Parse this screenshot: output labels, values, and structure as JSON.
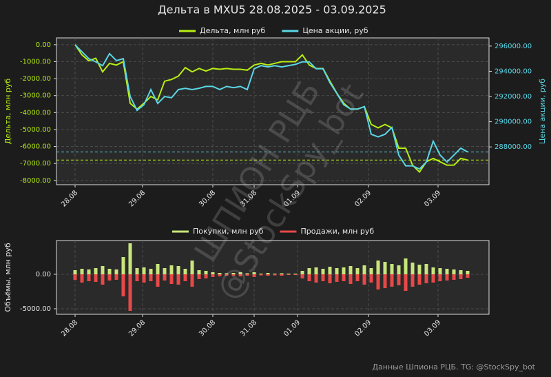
{
  "footer": "Данные Шпиона РЦБ. TG: @StockSpy_bot",
  "watermark": [
    "ШПИОН РЦБ",
    "@StockSpy_bot"
  ],
  "chart_data": [
    {
      "type": "line",
      "title": "Дельта в MXU5 28.08.2025 - 03.09.2025",
      "ylabel": "Дельта, млн руб",
      "y2label": "Цена акции, руб",
      "xlim": [
        -2.7,
        60.1
      ],
      "xticks": [
        {
          "value": 0,
          "label": "28.08"
        },
        {
          "value": 9.8,
          "label": "29.08"
        },
        {
          "value": 20,
          "label": "30.08"
        },
        {
          "value": 26,
          "label": "31.08"
        },
        {
          "value": 32.3,
          "label": "01.09"
        },
        {
          "value": 42.6,
          "label": "02.09"
        },
        {
          "value": 52.7,
          "label": "03.09"
        }
      ],
      "ylim": [
        -8250,
        400
      ],
      "yticks": [
        {
          "value": 0,
          "label": "0.00"
        },
        {
          "value": -1000,
          "label": "-1000.00"
        },
        {
          "value": -2000,
          "label": "-2000.00"
        },
        {
          "value": -3000,
          "label": "-3000.00"
        },
        {
          "value": -4000,
          "label": "-4000.00"
        },
        {
          "value": -5000,
          "label": "-5000.00"
        },
        {
          "value": -6000,
          "label": "-6000.00"
        },
        {
          "value": -7000,
          "label": "-7000.00"
        },
        {
          "value": -8000,
          "label": "-8000.00"
        }
      ],
      "y2lim": [
        285000,
        296650
      ],
      "y2ticks": [
        {
          "value": 288000,
          "label": "288000.00"
        },
        {
          "value": 290000,
          "label": "290000.00"
        },
        {
          "value": 292000,
          "label": "292000.00"
        },
        {
          "value": 294000,
          "label": "294000.00"
        },
        {
          "value": 296000,
          "label": "296000.00"
        }
      ],
      "grid": true,
      "legend": "top",
      "last_value_lines": true,
      "series": [
        {
          "name": "Дельта, млн руб",
          "color": "#b8ee12",
          "values": [
            0,
            -600,
            -950,
            -800,
            -1600,
            -1100,
            -1200,
            -1000,
            -3450,
            -3800,
            -3450,
            -3050,
            -3250,
            -2150,
            -2050,
            -1850,
            -1350,
            -1600,
            -1400,
            -1550,
            -1400,
            -1450,
            -1400,
            -1450,
            -1450,
            -1500,
            -1200,
            -1100,
            -1200,
            -1100,
            -1000,
            -1000,
            -1000,
            -600,
            -1200,
            -1400,
            -1400,
            -2150,
            -2850,
            -3450,
            -3800,
            -3800,
            -3650,
            -4700,
            -4900,
            -4700,
            -4900,
            -6100,
            -6100,
            -7100,
            -7500,
            -6900,
            -6700,
            -6900,
            -7100,
            -7100,
            -6700,
            -6800
          ]
        },
        {
          "name": "Цена акции, руб",
          "color": "#5ad6e6",
          "axis": "y2",
          "values": [
            296100,
            295550,
            295000,
            294750,
            294450,
            295400,
            294850,
            295000,
            292000,
            290900,
            291350,
            292550,
            291450,
            292000,
            291900,
            292550,
            292650,
            292550,
            292650,
            292800,
            292800,
            292550,
            292800,
            292700,
            292800,
            292550,
            294200,
            294450,
            294350,
            294450,
            294350,
            294450,
            294550,
            294750,
            294750,
            294200,
            294200,
            293100,
            292250,
            291350,
            291000,
            291000,
            291200,
            289000,
            288800,
            289000,
            289550,
            287350,
            286500,
            286500,
            286250,
            286800,
            288450,
            287350,
            286800,
            287350,
            287900,
            287600
          ]
        }
      ]
    },
    {
      "type": "bar",
      "ylabel": "Объёмы, млн руб",
      "xlim": [
        -2.7,
        60.1
      ],
      "xticks": [
        {
          "value": 0,
          "label": "28.08"
        },
        {
          "value": 9.8,
          "label": "29.08"
        },
        {
          "value": 20,
          "label": "30.08"
        },
        {
          "value": 26,
          "label": "31.08"
        },
        {
          "value": 32.3,
          "label": "01.09"
        },
        {
          "value": 42.6,
          "label": "02.09"
        },
        {
          "value": 52.7,
          "label": "03.09"
        }
      ],
      "ylim": [
        -5800,
        4900
      ],
      "yticks": [
        {
          "value": 0,
          "label": "0.00"
        },
        {
          "value": -5000,
          "label": "-5000.00"
        }
      ],
      "grid": true,
      "legend": "top",
      "series": [
        {
          "name": "Покупки, млн руб",
          "color": "#c8e67c",
          "values": [
            600,
            800,
            700,
            900,
            1200,
            800,
            700,
            2500,
            4500,
            900,
            1000,
            800,
            1500,
            900,
            1300,
            1200,
            800,
            2000,
            600,
            500,
            300,
            200,
            150,
            200,
            300,
            150,
            300,
            100,
            200,
            100,
            150,
            100,
            100,
            500,
            900,
            1000,
            800,
            1100,
            900,
            1000,
            1200,
            900,
            1300,
            900,
            2000,
            1800,
            1500,
            1300,
            2300,
            1700,
            1400,
            1500,
            1000,
            900,
            800,
            700,
            600,
            500
          ]
        },
        {
          "name": "Продажи, млн руб",
          "color": "#e84848",
          "values": [
            -800,
            -1200,
            -1000,
            -1100,
            -1500,
            -900,
            -800,
            -3200,
            -5300,
            -1000,
            -1200,
            -1000,
            -1800,
            -900,
            -1400,
            -1500,
            -1000,
            -1800,
            -700,
            -600,
            -400,
            -300,
            -200,
            -200,
            -300,
            -200,
            -400,
            -150,
            -200,
            -150,
            -200,
            -100,
            -100,
            -600,
            -1000,
            -1200,
            -1000,
            -1300,
            -1100,
            -1000,
            -1400,
            -1000,
            -1500,
            -1200,
            -2200,
            -2000,
            -1800,
            -1600,
            -2400,
            -1800,
            -1500,
            -1300,
            -1200,
            -1000,
            -900,
            -800,
            -700,
            -500
          ]
        }
      ]
    }
  ]
}
